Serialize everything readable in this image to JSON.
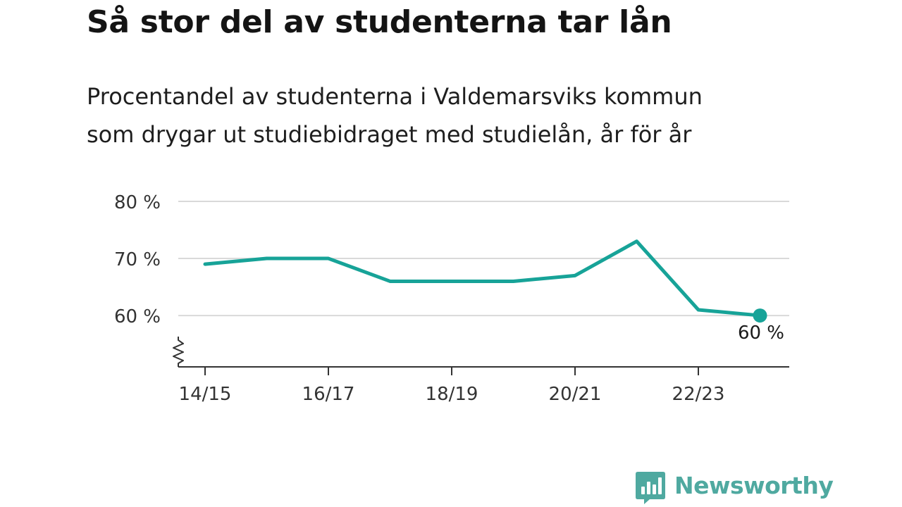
{
  "title": "Så stor del av studenterna tar lån",
  "subtitle_lines": [
    "Procentandel av studenterna i Valdemarsviks kommun",
    "som drygar ut studiebidraget med studielån, år för år"
  ],
  "brand": {
    "name": "Newsworthy",
    "icon": "newsworthy-chart-icon"
  },
  "colors": {
    "line": "#17a398",
    "grid": "#d9d9d9",
    "axis": "#333333",
    "brand": "#4fa9a0"
  },
  "chart_data": {
    "type": "line",
    "x": [
      "14/15",
      "15/16",
      "16/17",
      "17/18",
      "18/19",
      "19/20",
      "20/21",
      "21/22",
      "22/23",
      "23/24"
    ],
    "series": [
      {
        "values": [
          69,
          70,
          70,
          66,
          66,
          66,
          67,
          73,
          61,
          60
        ]
      }
    ],
    "xticks": [
      "14/15",
      "16/17",
      "18/19",
      "20/21",
      "22/23"
    ],
    "yticks": [
      60,
      70,
      80
    ],
    "ytick_labels": [
      "60 %",
      "70 %",
      "80 %"
    ],
    "ylim": [
      51,
      80
    ],
    "y_axis_break": true,
    "end_label": "60 %",
    "xlabel": "",
    "ylabel": "",
    "grid": true
  }
}
